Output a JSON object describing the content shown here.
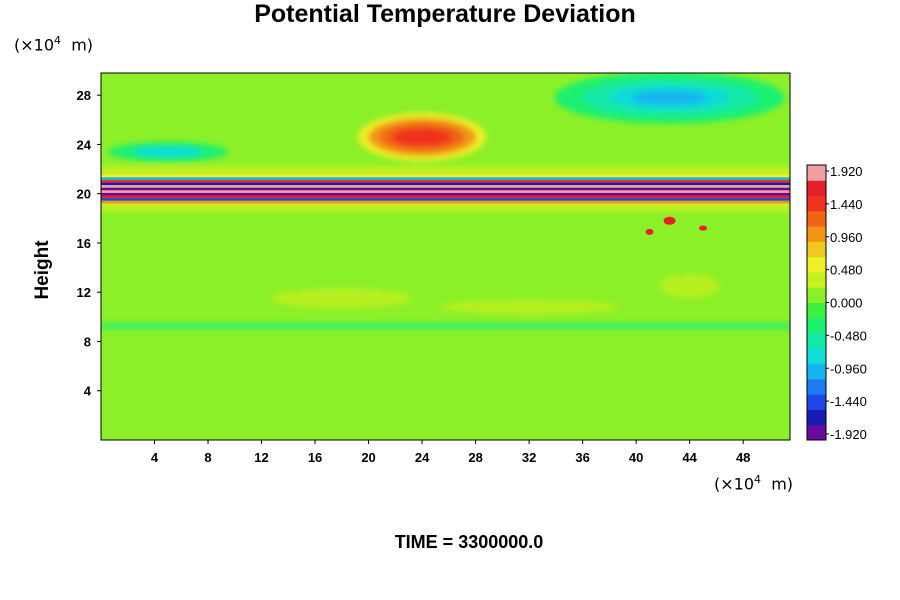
{
  "chart_data": {
    "type": "heatmap",
    "title": "Potential Temperature Deviation",
    "ylabel": "Height",
    "xlabel": "",
    "x_unit": "m",
    "y_unit": "m",
    "unit_multiplier": "×10",
    "unit_exponent": "4",
    "footer": "TIME = 3300000.0",
    "xlim": [
      0,
      51.5
    ],
    "ylim": [
      0,
      29.8
    ],
    "x_ticks": [
      4,
      8,
      12,
      16,
      20,
      24,
      28,
      32,
      36,
      40,
      44,
      48
    ],
    "y_ticks": [
      4,
      8,
      12,
      16,
      20,
      24,
      28
    ],
    "colorbar": {
      "min": -1.92,
      "max": 1.92,
      "labels": [
        "1.920",
        "1.440",
        "0.960",
        "0.480",
        "0.000",
        "-0.480",
        "-0.960",
        "-1.440",
        "-1.920"
      ],
      "colors": [
        "#6a0a9a",
        "#1a1ab5",
        "#1e46e6",
        "#1e7af0",
        "#15b4f0",
        "#11dcd8",
        "#14e8a8",
        "#1ef070",
        "#3cf040",
        "#8cf028",
        "#c8f020",
        "#f0f028",
        "#f0c81e",
        "#f09614",
        "#f06414",
        "#f0321e",
        "#e61e28",
        "#f0a0a0"
      ]
    },
    "features": [
      {
        "label": "warm anomaly upper center",
        "x": 24,
        "y": 24.6,
        "value": 1.45
      },
      {
        "label": "cold anomaly upper right",
        "x": 42.5,
        "y": 27.8,
        "value": -0.95
      },
      {
        "label": "cold anomaly upper left",
        "x": 5,
        "y": 23.4,
        "value": -0.7
      },
      {
        "label": "strong oscillation band",
        "x": 25,
        "y": 20.4,
        "value": 1.92
      },
      {
        "label": "cool band near 9",
        "x": 25,
        "y": 9.3,
        "value": -0.3
      }
    ]
  }
}
